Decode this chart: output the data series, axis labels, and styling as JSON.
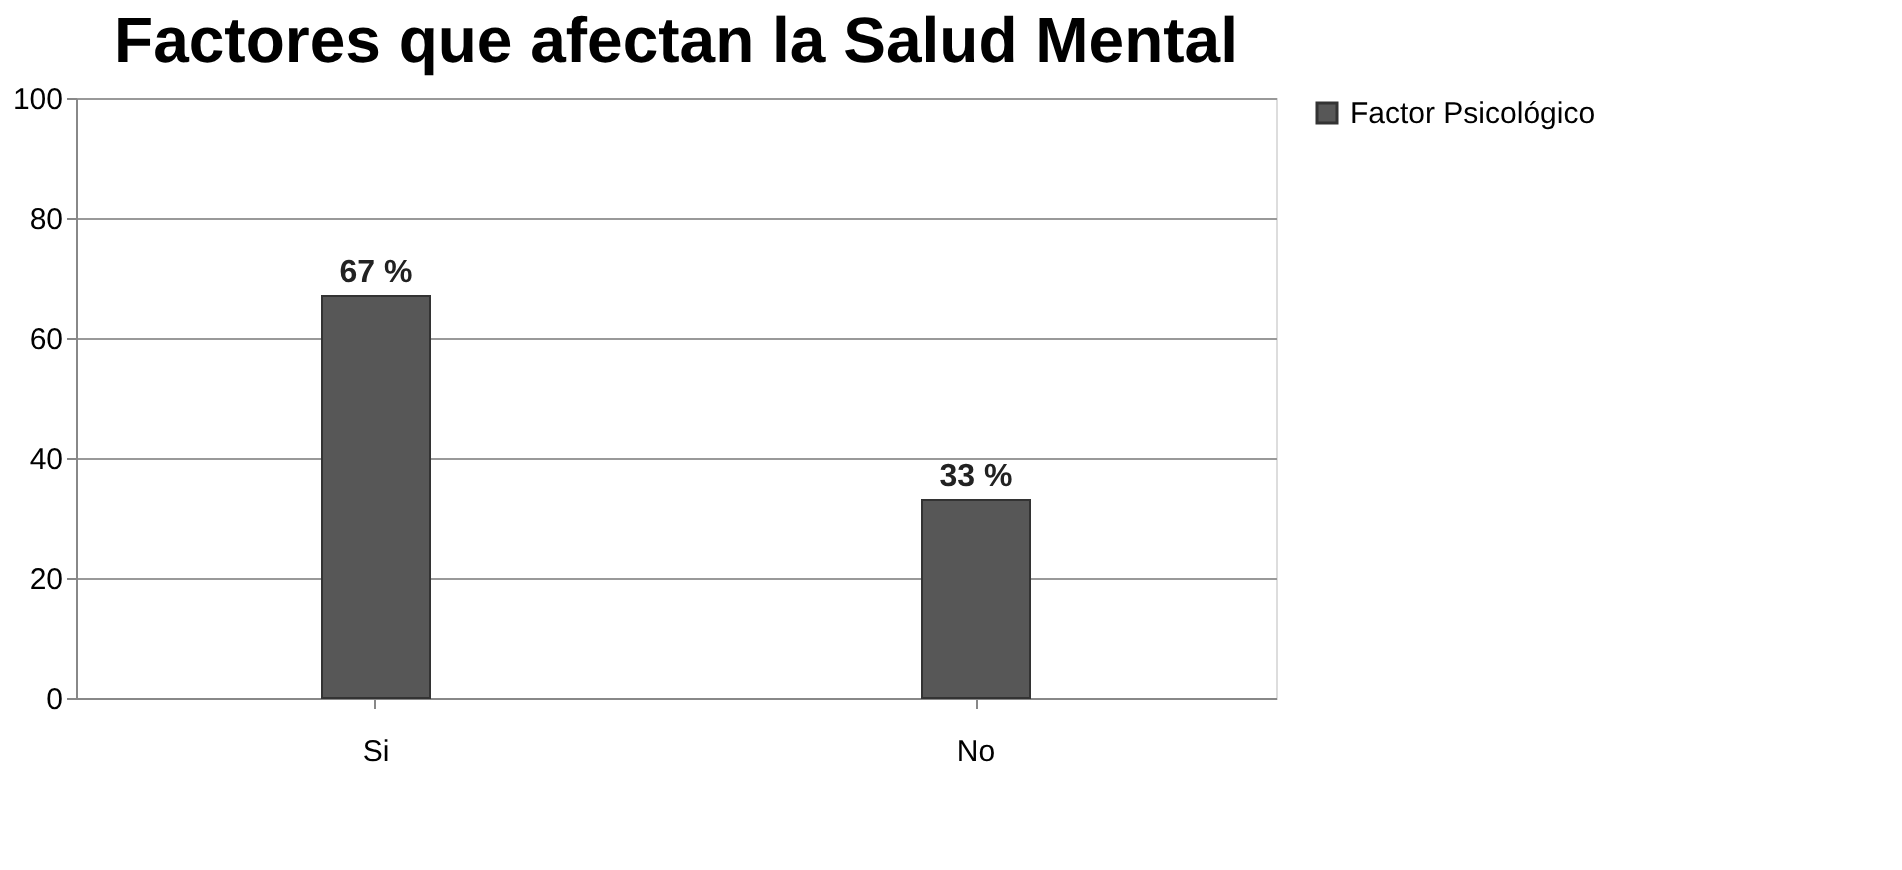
{
  "chart_data": {
    "type": "bar",
    "title": "Factores que afectan la Salud Mental",
    "categories": [
      "Si",
      "No"
    ],
    "series": [
      {
        "name": "Factor Psicológico",
        "color": "#575757",
        "values": [
          67,
          33
        ],
        "value_labels": [
          "67 %",
          "33 %"
        ]
      }
    ],
    "ylim": [
      0,
      100
    ],
    "yticks": [
      0,
      20,
      40,
      60,
      80,
      100
    ],
    "grid": "y",
    "legend": "right"
  }
}
